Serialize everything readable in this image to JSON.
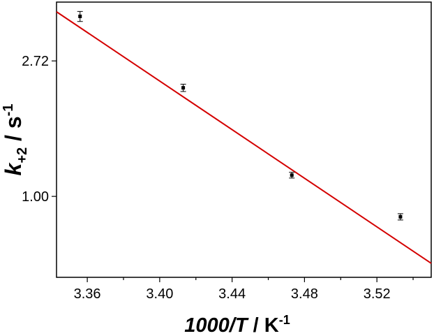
{
  "chart_data": {
    "type": "scatter",
    "xlabel": {
      "main": "1000/",
      "italic_var": "T",
      "unit": " / K",
      "unit_sup": "-1"
    },
    "ylabel": {
      "var": "k",
      "sub": "+2",
      "unit": " / s",
      "unit_sup": "-1"
    },
    "x_ticks": [
      3.36,
      3.4,
      3.44,
      3.48,
      3.52
    ],
    "x_tick_labels": [
      "3.36",
      "3.40",
      "3.44",
      "3.48",
      "3.52"
    ],
    "y_ticks": [
      1.0,
      2.72
    ],
    "y_tick_labels": [
      "1.00",
      "2.72"
    ],
    "xlim": [
      3.343,
      3.55
    ],
    "ylim": [
      0.55,
      4.2
    ],
    "y_scale": "log",
    "grid": false,
    "points": [
      {
        "x": 3.356,
        "y": 3.78,
        "err": 0.14
      },
      {
        "x": 3.413,
        "y": 2.23,
        "err": 0.06
      },
      {
        "x": 3.473,
        "y": 1.17,
        "err": 0.025
      },
      {
        "x": 3.533,
        "y": 0.86,
        "err": 0.02
      }
    ],
    "fit_line": {
      "x": [
        3.343,
        3.55
      ],
      "y": [
        3.91,
        0.61
      ],
      "color": "#d40000"
    },
    "marker_color": "#000000"
  }
}
